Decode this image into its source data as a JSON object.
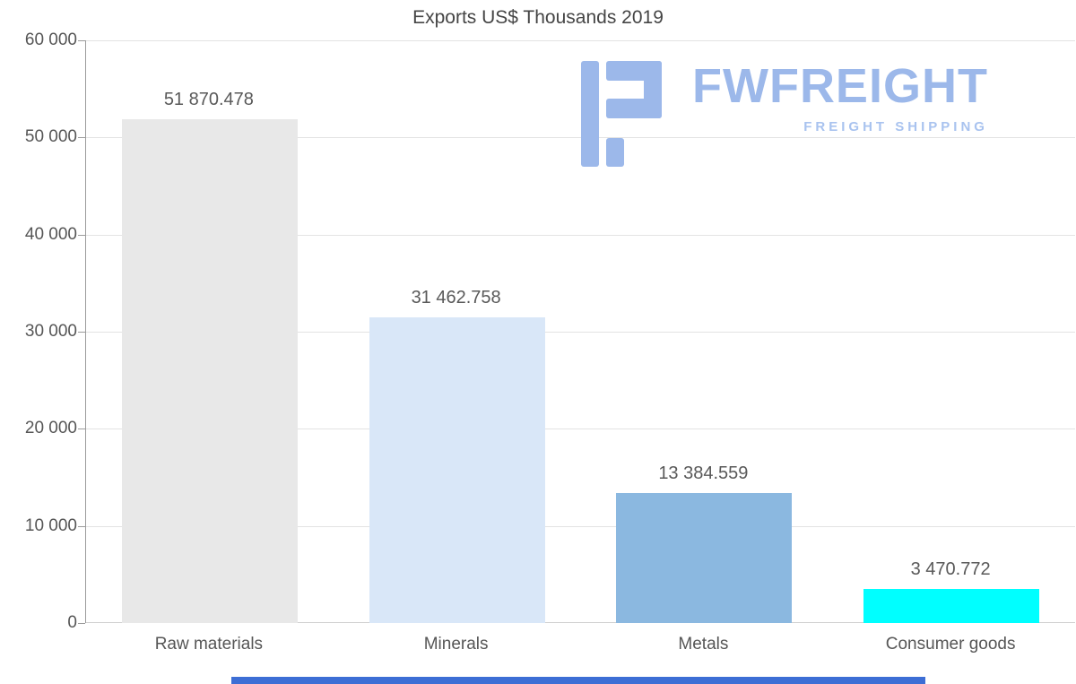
{
  "chart_data": {
    "type": "bar",
    "title": "Exports US$ Thousands 2019",
    "categories": [
      "Raw materials",
      "Minerals",
      "Metals",
      "Consumer goods"
    ],
    "values": [
      51870.478,
      31462.758,
      13384.559,
      3470.772
    ],
    "value_labels": [
      "51 870.478",
      "31 462.758",
      "13 384.559",
      "3 470.772"
    ],
    "bar_colors": [
      "#e8e8e8",
      "#d9e7f8",
      "#8bb8e0",
      "#00ffff"
    ],
    "xlabel": "",
    "ylabel": "",
    "ylim": [
      0,
      60000
    ],
    "yticks": [
      {
        "value": 0,
        "label": "0"
      },
      {
        "value": 10000,
        "label": "10 000"
      },
      {
        "value": 20000,
        "label": "20 000"
      },
      {
        "value": 30000,
        "label": "30 000"
      },
      {
        "value": 40000,
        "label": "40 000"
      },
      {
        "value": 50000,
        "label": "50 000"
      },
      {
        "value": 60000,
        "label": "60 000"
      }
    ],
    "grid": true,
    "legend": "none"
  },
  "logo": {
    "name": "FWFREIGHT",
    "tagline": "FREIGHT SHIPPING",
    "color": "#9cb8ea",
    "tagline_color": "#a9c3ef"
  },
  "footer": {
    "color": "#3d6ed5"
  }
}
